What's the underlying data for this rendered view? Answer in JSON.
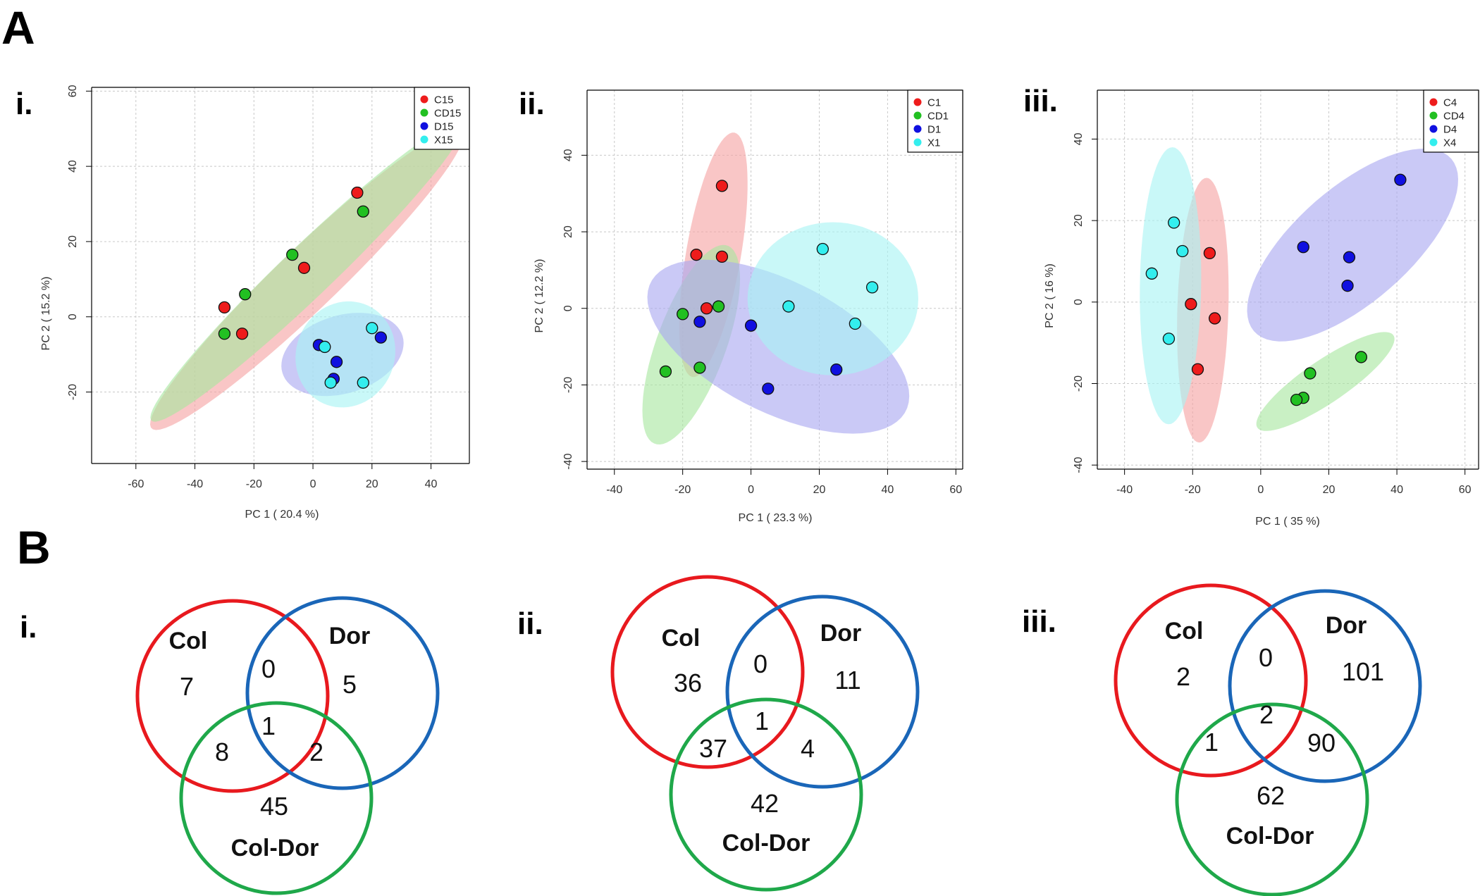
{
  "panels": {
    "A": "A",
    "B": "B"
  },
  "colors": {
    "red": "#ee1c1c",
    "green": "#22c022",
    "blue": "#1010e0",
    "cyan": "#33eeee",
    "venn_red": "#e8191e",
    "venn_blue": "#1a66b8",
    "venn_green": "#1fa84a",
    "ell_red": "#f5a3a3",
    "ell_green": "#a8e6a0",
    "ell_blue": "#aaa8f0",
    "ell_cyan": "#a8f3f3"
  },
  "chart_data": [
    {
      "type": "scatter",
      "id": "A-i",
      "sublabel": "i.",
      "xlabel": "PC 1 ( 20.4 %)",
      "ylabel": "PC 2 ( 15.2 %)",
      "xlim": [
        -75,
        53
      ],
      "ylim": [
        -39,
        61
      ],
      "xticks": [
        "-60",
        "-40",
        "-20",
        "0",
        "20",
        "40"
      ],
      "xtick_values": [
        -60,
        -40,
        -20,
        0,
        20,
        40
      ],
      "yticks": [
        "-20",
        "0",
        "20",
        "40",
        "60"
      ],
      "ytick_values": [
        -20,
        0,
        20,
        40,
        60
      ],
      "legend": [
        "C15",
        "CD15",
        "D15",
        "X15"
      ],
      "series": [
        {
          "name": "C15",
          "color": "red",
          "points": [
            [
              15,
              33
            ],
            [
              -3,
              13
            ],
            [
              -30,
              2.5
            ],
            [
              -24,
              -4.5
            ]
          ]
        },
        {
          "name": "CD15",
          "color": "green",
          "points": [
            [
              17,
              28
            ],
            [
              -7,
              16.5
            ],
            [
              -23,
              6
            ],
            [
              -30,
              -4.5
            ]
          ]
        },
        {
          "name": "D15",
          "color": "blue",
          "points": [
            [
              2,
              -7.5
            ],
            [
              8,
              -12
            ],
            [
              7,
              -16.5
            ],
            [
              23,
              -5.5
            ]
          ]
        },
        {
          "name": "X15",
          "color": "cyan",
          "points": [
            [
              4,
              -8
            ],
            [
              20,
              -3
            ],
            [
              6,
              -17.5
            ],
            [
              17,
              -17.5
            ]
          ]
        }
      ],
      "ellipses": [
        {
          "name": "C15",
          "color": "ell_red",
          "center": [
            -2,
            10
          ],
          "rx": 66,
          "ry": 9,
          "angle": 36.7
        },
        {
          "name": "CD15",
          "color": "ell_green",
          "center": [
            -2,
            12
          ],
          "rx": 66,
          "ry": 7.5,
          "angle": 36.7
        },
        {
          "name": "D15",
          "color": "ell_blue",
          "center": [
            10,
            -10
          ],
          "rx": 21,
          "ry": 10.5,
          "angle": 11
        },
        {
          "name": "X15",
          "color": "ell_cyan",
          "center": [
            11,
            -10
          ],
          "rx": 17,
          "ry": 14,
          "angle": 10
        }
      ]
    },
    {
      "type": "scatter",
      "id": "A-ii",
      "sublabel": "ii.",
      "xlabel": "PC 1 ( 23.3 %)",
      "ylabel": "PC 2 ( 12.2 %)",
      "xlim": [
        -48,
        62
      ],
      "ylim": [
        -42,
        57
      ],
      "xticks": [
        "-40",
        "-20",
        "0",
        "20",
        "40",
        "60"
      ],
      "xtick_values": [
        -40,
        -20,
        0,
        20,
        40,
        60
      ],
      "yticks": [
        "-40",
        "-20",
        "0",
        "20",
        "40"
      ],
      "ytick_values": [
        -40,
        -20,
        0,
        20,
        40
      ],
      "legend": [
        "C1",
        "CD1",
        "D1",
        "X1"
      ],
      "series": [
        {
          "name": "C1",
          "color": "red",
          "points": [
            [
              -8.5,
              32
            ],
            [
              -16,
              14
            ],
            [
              -8.5,
              13.5
            ],
            [
              -13,
              0
            ]
          ]
        },
        {
          "name": "CD1",
          "color": "green",
          "points": [
            [
              -20,
              -1.5
            ],
            [
              -9.5,
              0.5
            ],
            [
              -15,
              -15.5
            ],
            [
              -25,
              -16.5
            ]
          ]
        },
        {
          "name": "D1",
          "color": "blue",
          "points": [
            [
              -15,
              -3.5
            ],
            [
              0,
              -4.5
            ],
            [
              5,
              -21
            ],
            [
              25,
              -16
            ]
          ]
        },
        {
          "name": "X1",
          "color": "cyan",
          "points": [
            [
              21,
              15.5
            ],
            [
              35.5,
              5.5
            ],
            [
              11,
              0.5
            ],
            [
              30.5,
              -4
            ]
          ]
        }
      ],
      "ellipses": [
        {
          "name": "C1",
          "color": "ell_red",
          "center": [
            -11,
            14
          ],
          "rx": 32.5,
          "ry": 8,
          "angle": 79
        },
        {
          "name": "CD1",
          "color": "ell_green",
          "center": [
            -17.5,
            -9.5
          ],
          "rx": 28,
          "ry": 10,
          "angle": 67
        },
        {
          "name": "D1",
          "color": "ell_blue",
          "center": [
            8,
            -10
          ],
          "rx": 41,
          "ry": 17.5,
          "angle": -23
        },
        {
          "name": "X1",
          "color": "ell_cyan",
          "center": [
            24,
            2.5
          ],
          "rx": 25,
          "ry": 20,
          "angle": 0
        }
      ]
    },
    {
      "type": "scatter",
      "id": "A-iii",
      "sublabel": "iii.",
      "xlabel": "PC 1 ( 35 %)",
      "ylabel": "PC 2 ( 16 %)",
      "xlim": [
        -48,
        64
      ],
      "ylim": [
        -41,
        52
      ],
      "xticks": [
        "-40",
        "-20",
        "0",
        "20",
        "40",
        "60"
      ],
      "xtick_values": [
        -40,
        -20,
        0,
        20,
        40,
        60
      ],
      "yticks": [
        "-40",
        "-20",
        "0",
        "20",
        "40"
      ],
      "ytick_values": [
        -40,
        -20,
        0,
        20,
        40
      ],
      "legend": [
        "C4",
        "CD4",
        "D4",
        "X4"
      ],
      "series": [
        {
          "name": "C4",
          "color": "red",
          "points": [
            [
              -15,
              12
            ],
            [
              -20.5,
              -0.5
            ],
            [
              -13.5,
              -4
            ],
            [
              -18.5,
              -16.5
            ]
          ]
        },
        {
          "name": "CD4",
          "color": "green",
          "points": [
            [
              29.5,
              -13.5
            ],
            [
              14.5,
              -17.5
            ],
            [
              12.5,
              -23.5
            ],
            [
              10.5,
              -24
            ]
          ]
        },
        {
          "name": "D4",
          "color": "blue",
          "points": [
            [
              41,
              30
            ],
            [
              12.5,
              13.5
            ],
            [
              26,
              11
            ],
            [
              25.5,
              4
            ]
          ]
        },
        {
          "name": "X4",
          "color": "cyan",
          "points": [
            [
              -25.5,
              19.5
            ],
            [
              -23,
              12.5
            ],
            [
              -32,
              7
            ],
            [
              -27,
              -9
            ]
          ]
        }
      ],
      "ellipses": [
        {
          "name": "C4",
          "color": "ell_red",
          "center": [
            -17,
            -2
          ],
          "rx": 32.5,
          "ry": 7.5,
          "angle": 88
        },
        {
          "name": "X4",
          "color": "ell_cyan",
          "center": [
            -26.5,
            4
          ],
          "rx": 34,
          "ry": 9,
          "angle": 89
        },
        {
          "name": "D4",
          "color": "ell_blue",
          "center": [
            27,
            14
          ],
          "rx": 36,
          "ry": 15,
          "angle": 34
        },
        {
          "name": "CD4",
          "color": "ell_green",
          "center": [
            19,
            -19.5
          ],
          "rx": 23,
          "ry": 5.5,
          "angle": 29
        }
      ]
    },
    {
      "type": "venn",
      "id": "B-i",
      "sublabel": "i.",
      "sets": [
        "Col",
        "Dor",
        "Col-Dor"
      ],
      "only_col": "7",
      "only_dor": "5",
      "only_coldor": "45",
      "col_dor": "0",
      "col_coldor": "8",
      "dor_coldor": "2",
      "all_three": "1"
    },
    {
      "type": "venn",
      "id": "B-ii",
      "sublabel": "ii.",
      "sets": [
        "Col",
        "Dor",
        "Col-Dor"
      ],
      "only_col": "36",
      "only_dor": "11",
      "only_coldor": "42",
      "col_dor": "0",
      "col_coldor": "37",
      "dor_coldor": "4",
      "all_three": "1"
    },
    {
      "type": "venn",
      "id": "B-iii",
      "sublabel": "iii.",
      "sets": [
        "Col",
        "Dor",
        "Col-Dor"
      ],
      "only_col": "2",
      "only_dor": "101",
      "only_coldor": "62",
      "col_dor": "0",
      "col_coldor": "1",
      "dor_coldor": "90",
      "all_three": "2"
    }
  ]
}
